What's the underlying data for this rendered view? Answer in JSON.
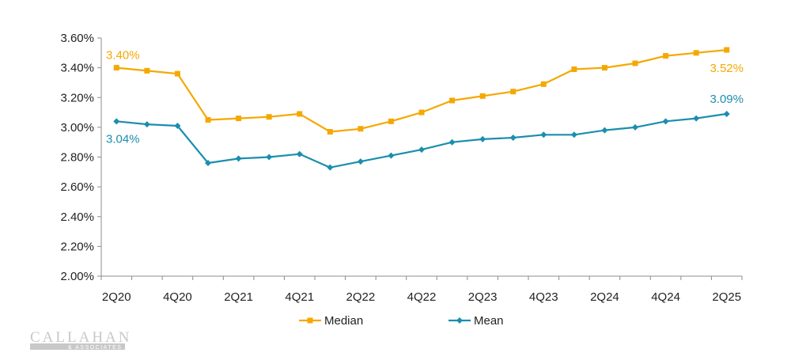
{
  "chart_data": {
    "type": "line",
    "title": "",
    "xlabel": "",
    "ylabel": "",
    "categories": [
      "2Q20",
      "3Q20",
      "4Q20",
      "1Q21",
      "2Q21",
      "3Q21",
      "4Q21",
      "1Q22",
      "2Q22",
      "3Q22",
      "4Q22",
      "1Q23",
      "2Q23",
      "3Q23",
      "4Q23",
      "1Q24",
      "2Q24",
      "3Q24",
      "4Q24",
      "1Q25",
      "2Q25"
    ],
    "x_tick_labels": [
      "2Q20",
      "4Q20",
      "2Q21",
      "4Q21",
      "2Q22",
      "4Q22",
      "2Q23",
      "4Q23",
      "2Q24",
      "4Q24",
      "2Q25"
    ],
    "y_tick_labels": [
      "2.00%",
      "2.20%",
      "2.40%",
      "2.60%",
      "2.80%",
      "3.00%",
      "3.20%",
      "3.40%",
      "3.60%"
    ],
    "ylim": [
      2.0,
      3.6
    ],
    "y_unit": "%",
    "grid": false,
    "legend_position": "bottom",
    "series": [
      {
        "name": "Median",
        "color": "#F5A800",
        "marker": "square",
        "values": [
          3.4,
          3.38,
          3.36,
          3.05,
          3.06,
          3.07,
          3.09,
          2.97,
          2.99,
          3.04,
          3.1,
          3.18,
          3.21,
          3.24,
          3.29,
          3.39,
          3.4,
          3.43,
          3.48,
          3.5,
          3.52
        ]
      },
      {
        "name": "Mean",
        "color": "#1B8EAE",
        "marker": "diamond",
        "values": [
          3.04,
          3.02,
          3.01,
          2.76,
          2.79,
          2.8,
          2.82,
          2.73,
          2.77,
          2.81,
          2.85,
          2.9,
          2.92,
          2.93,
          2.95,
          2.95,
          2.98,
          3.0,
          3.04,
          3.06,
          3.09
        ]
      }
    ],
    "annotations": [
      {
        "series": "Median",
        "index": 0,
        "text": "3.40%"
      },
      {
        "series": "Median",
        "index": 20,
        "text": "3.52%"
      },
      {
        "series": "Mean",
        "index": 0,
        "text": "3.04%"
      },
      {
        "series": "Mean",
        "index": 20,
        "text": "3.09%"
      }
    ]
  },
  "logo": {
    "main": "CALLAHAN",
    "sub": "& ASSOCIATES"
  }
}
